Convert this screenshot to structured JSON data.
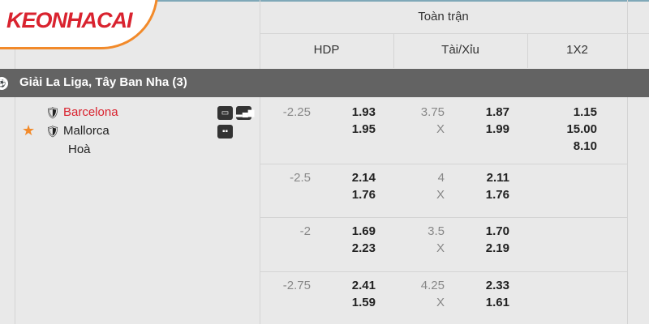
{
  "logo": "KEONHACAI",
  "header": {
    "group": "Toàn trận",
    "cols": [
      "HDP",
      "Tài/Xỉu",
      "1X2"
    ]
  },
  "league": {
    "name": "Giải La Liga, Tây Ban Nha (3)"
  },
  "match": {
    "home": "Barcelona",
    "away": "Mallorca",
    "draw": "Hoà",
    "home_color": "#d9232f"
  },
  "rows": [
    {
      "hdp": "-2.25",
      "hdp_home": "1.93",
      "hdp_away": "1.95",
      "ou": "3.75",
      "ou_x": "X",
      "ou_over": "1.87",
      "ou_under": "1.99",
      "x2": [
        "1.15",
        "15.00",
        "8.10"
      ]
    },
    {
      "hdp": "-2.5",
      "hdp_home": "2.14",
      "hdp_away": "1.76",
      "ou": "4",
      "ou_x": "X",
      "ou_over": "2.11",
      "ou_under": "1.76"
    },
    {
      "hdp": "-2",
      "hdp_home": "1.69",
      "hdp_away": "2.23",
      "ou": "3.5",
      "ou_x": "X",
      "ou_over": "1.70",
      "ou_under": "2.19"
    },
    {
      "hdp": "-2.75",
      "hdp_home": "2.41",
      "hdp_away": "1.59",
      "ou": "4.25",
      "ou_x": "X",
      "ou_over": "2.33",
      "ou_under": "1.61"
    }
  ]
}
